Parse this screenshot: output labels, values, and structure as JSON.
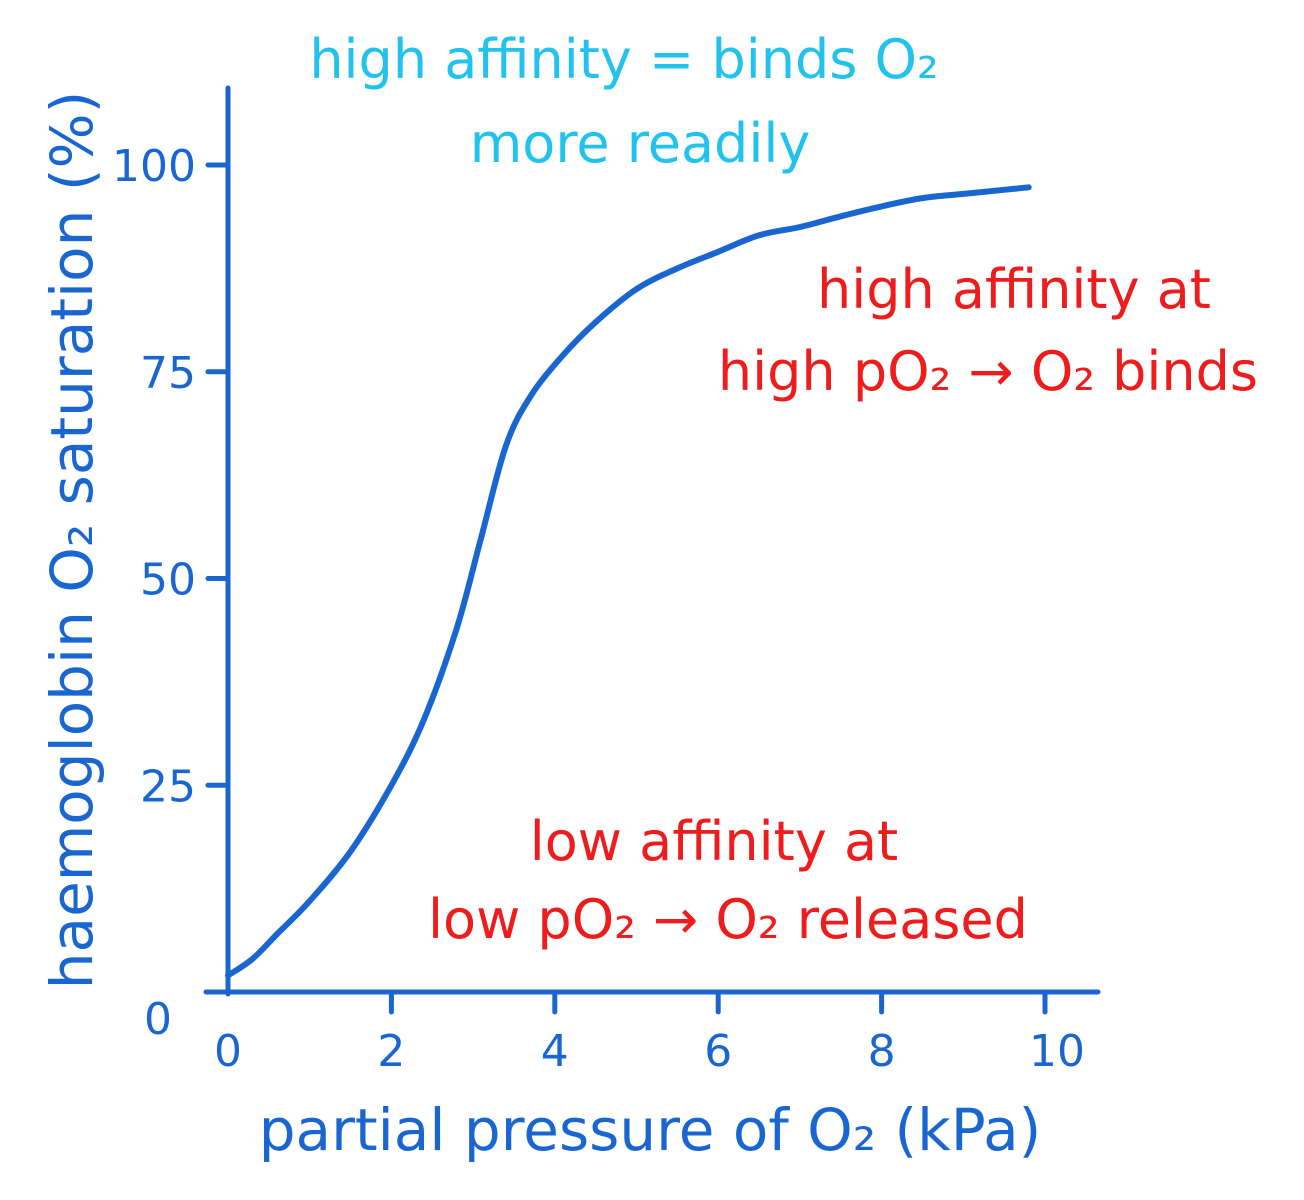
{
  "chart_data": {
    "type": "line",
    "xlabel": "partial pressure of O₂ (kPa)",
    "ylabel": "haemoglobin O₂ saturation (%)",
    "xlim": [
      0,
      10.5
    ],
    "ylim": [
      0,
      107
    ],
    "x_ticks": [
      "0",
      "2",
      "4",
      "6",
      "8",
      "10"
    ],
    "y_ticks": [
      "0",
      "25",
      "50",
      "75",
      "100"
    ],
    "grid": false,
    "legend": "none",
    "series": [
      {
        "color": "#1a66d1",
        "x": [
          0,
          0.3,
          0.6,
          1.0,
          1.5,
          2.0,
          2.4,
          2.8,
          3.1,
          3.4,
          3.7,
          4.1,
          4.5,
          5.0,
          5.5,
          6.0,
          6.5,
          7.0,
          7.5,
          8.0,
          8.5,
          9.0,
          9.5,
          9.8
        ],
        "y": [
          2,
          4,
          7,
          11,
          17,
          25,
          33,
          44,
          55,
          66,
          72,
          77,
          81,
          85,
          87.5,
          89.5,
          91.5,
          92.5,
          93.8,
          95,
          96,
          96.5,
          97,
          97.3
        ]
      }
    ],
    "annotations": [
      {
        "id": "top",
        "color": "#22c2ee",
        "lines": [
          "high affinity = binds O₂",
          "more readily"
        ]
      },
      {
        "id": "upper-right",
        "color": "#ee1c1c",
        "lines": [
          "high affinity at",
          "high pO₂ → O₂ binds"
        ]
      },
      {
        "id": "lower",
        "color": "#ee1c1c",
        "lines": [
          "low affinity at",
          "low pO₂ → O₂ released"
        ]
      }
    ]
  }
}
